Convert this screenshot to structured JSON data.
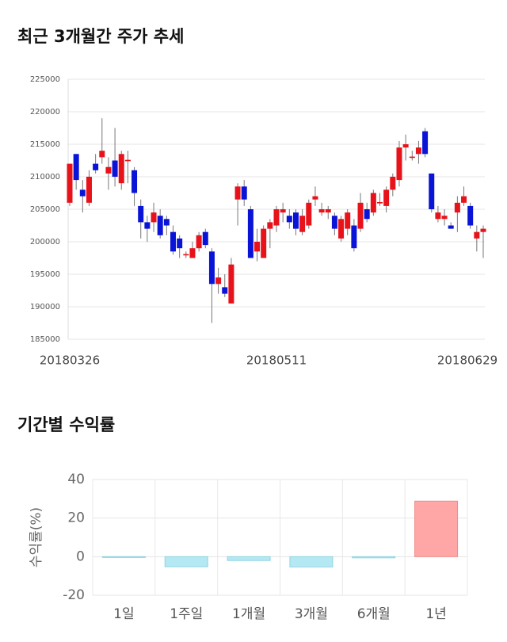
{
  "chart_data": [
    {
      "type": "candlestick",
      "title": "최근 3개월간 주가 추세",
      "categories": [
        "20180326",
        null,
        null,
        null,
        null,
        null,
        null,
        null,
        null,
        null,
        null,
        null,
        null,
        null,
        null,
        null,
        null,
        null,
        null,
        null,
        null,
        null,
        null,
        null,
        null,
        null,
        null,
        null,
        null,
        null,
        null,
        null,
        "20180511",
        null,
        null,
        null,
        null,
        null,
        null,
        null,
        null,
        null,
        null,
        null,
        null,
        null,
        null,
        null,
        null,
        null,
        null,
        null,
        null,
        null,
        null,
        null,
        null,
        null,
        null,
        null,
        null,
        null,
        null,
        null,
        "20180629"
      ],
      "open": [
        206000,
        213500,
        208000,
        206000,
        212000,
        213000,
        210500,
        212500,
        209000,
        212400,
        211000,
        205500,
        203000,
        203000,
        204000,
        203500,
        201500,
        200500,
        197900,
        197500,
        199000,
        201500,
        198500,
        193500,
        193000,
        190500,
        206500,
        208500,
        205000,
        198500,
        197500,
        202000,
        202500,
        204500,
        204000,
        204500,
        201500,
        202500,
        206500,
        204500,
        204500,
        204000,
        200500,
        202000,
        202500,
        202000,
        205000,
        204500,
        205900,
        205500,
        208000,
        209500,
        214500,
        212900,
        213500,
        217000,
        210500,
        203500,
        203500,
        202500,
        204500,
        206000,
        205500,
        200500,
        201500
      ],
      "high": [
        212000,
        213500,
        209500,
        211000,
        213500,
        219000,
        213000,
        217500,
        214000,
        214000,
        211500,
        206500,
        204000,
        206000,
        205000,
        204000,
        202500,
        201000,
        198500,
        200000,
        201500,
        202000,
        199000,
        196000,
        195000,
        197500,
        209000,
        209500,
        205500,
        202000,
        202500,
        203500,
        205500,
        206000,
        205000,
        205000,
        205000,
        206500,
        208500,
        206000,
        205500,
        204500,
        204000,
        205000,
        203500,
        207500,
        206000,
        208000,
        207500,
        208500,
        210500,
        215500,
        216500,
        214000,
        215500,
        217500,
        210500,
        205500,
        205000,
        203000,
        207000,
        208500,
        206000,
        202500,
        202500
      ],
      "low": [
        205500,
        208000,
        204500,
        205500,
        210500,
        212000,
        208000,
        208500,
        208000,
        209000,
        205500,
        200500,
        200000,
        201500,
        200500,
        201000,
        198000,
        197500,
        197500,
        197500,
        198500,
        199000,
        187500,
        192000,
        191500,
        190500,
        202500,
        205500,
        197500,
        197000,
        197500,
        199000,
        201500,
        203000,
        202000,
        201000,
        201000,
        202000,
        205500,
        204000,
        203500,
        201000,
        200000,
        201000,
        198500,
        201500,
        203000,
        204000,
        205500,
        204500,
        207000,
        208500,
        212500,
        212500,
        212000,
        213000,
        204500,
        203000,
        202500,
        202000,
        201500,
        205500,
        202000,
        198500,
        197500
      ],
      "close": [
        212000,
        209500,
        207000,
        210000,
        211000,
        214000,
        211500,
        210000,
        213500,
        212600,
        207500,
        203000,
        202000,
        204500,
        201000,
        202500,
        198500,
        199000,
        198100,
        199000,
        201000,
        199500,
        193500,
        194500,
        192000,
        196500,
        208500,
        206500,
        197500,
        200000,
        202000,
        203000,
        205000,
        205000,
        203000,
        202000,
        204000,
        206000,
        207000,
        205000,
        205000,
        202000,
        203500,
        204500,
        199000,
        206000,
        203500,
        207500,
        206100,
        208000,
        210000,
        214500,
        215000,
        213100,
        214500,
        213500,
        205000,
        204500,
        204000,
        202000,
        206000,
        207000,
        202500,
        201500,
        202000
      ],
      "up_color": "#e8121a",
      "down_color": "#0a14d6",
      "ylim": [
        185000,
        225000
      ],
      "yticks": [
        185000,
        190000,
        195000,
        200000,
        205000,
        210000,
        215000,
        220000,
        225000
      ],
      "grid": true
    },
    {
      "type": "bar",
      "title": "기간별 수익률",
      "y_label": "수익률(%)",
      "categories": [
        "1일",
        "1주일",
        "1개월",
        "3개월",
        "6개월",
        "1년"
      ],
      "values": [
        -0.2,
        -5.2,
        -2.0,
        -5.3,
        -0.6,
        28.8
      ],
      "positive_color": "#ffa6a6",
      "negative_color": "#b4e9f3",
      "ylim": [
        -20,
        40
      ],
      "yticks": [
        -20,
        0,
        20,
        40
      ],
      "grid": true
    }
  ]
}
